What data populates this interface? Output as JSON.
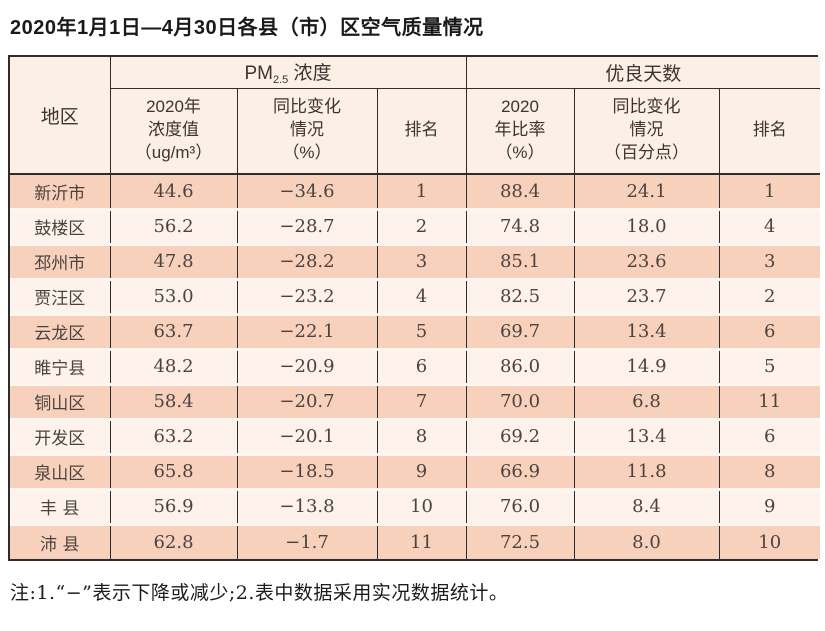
{
  "page": {
    "title": "2020年1月1日—4月30日各县（市）区空气质量情况",
    "note": "注:1.“−”表示下降或减少;2.表中数据采用实况数据统计。"
  },
  "theme": {
    "row-odd": "#f8d1bd",
    "row-even": "#fdf3ec",
    "header-bg": "#fcefe6",
    "border-dark": "#2d2d2d"
  },
  "table": {
    "headers": {
      "region": "地区",
      "pm25_group": {
        "prefix": "PM",
        "sub": "2.5",
        "suffix": " 浓度"
      },
      "good_days_group": "优良天数",
      "sub": {
        "pm25_value": "2020年\n浓度值\n（ug/m³）",
        "pm25_change": "同比变化\n情况\n（%）",
        "pm25_rank": "排名",
        "ratio_value": "2020\n年比率\n（%）",
        "ratio_change": "同比变化\n情况\n（百分点）",
        "ratio_rank": "排名"
      }
    },
    "rows": [
      {
        "region": "新沂市",
        "pm25_value": "44.6",
        "pm25_change": "−34.6",
        "pm25_rank": "1",
        "ratio_value": "88.4",
        "ratio_change": "24.1",
        "ratio_rank": "1"
      },
      {
        "region": "鼓楼区",
        "pm25_value": "56.2",
        "pm25_change": "−28.7",
        "pm25_rank": "2",
        "ratio_value": "74.8",
        "ratio_change": "18.0",
        "ratio_rank": "4"
      },
      {
        "region": "邳州市",
        "pm25_value": "47.8",
        "pm25_change": "−28.2",
        "pm25_rank": "3",
        "ratio_value": "85.1",
        "ratio_change": "23.6",
        "ratio_rank": "3"
      },
      {
        "region": "贾汪区",
        "pm25_value": "53.0",
        "pm25_change": "−23.2",
        "pm25_rank": "4",
        "ratio_value": "82.5",
        "ratio_change": "23.7",
        "ratio_rank": "2"
      },
      {
        "region": "云龙区",
        "pm25_value": "63.7",
        "pm25_change": "−22.1",
        "pm25_rank": "5",
        "ratio_value": "69.7",
        "ratio_change": "13.4",
        "ratio_rank": "6"
      },
      {
        "region": "睢宁县",
        "pm25_value": "48.2",
        "pm25_change": "−20.9",
        "pm25_rank": "6",
        "ratio_value": "86.0",
        "ratio_change": "14.9",
        "ratio_rank": "5"
      },
      {
        "region": "铜山区",
        "pm25_value": "58.4",
        "pm25_change": "−20.7",
        "pm25_rank": "7",
        "ratio_value": "70.0",
        "ratio_change": "6.8",
        "ratio_rank": "11"
      },
      {
        "region": "开发区",
        "pm25_value": "63.2",
        "pm25_change": "−20.1",
        "pm25_rank": "8",
        "ratio_value": "69.2",
        "ratio_change": "13.4",
        "ratio_rank": "6"
      },
      {
        "region": "泉山区",
        "pm25_value": "65.8",
        "pm25_change": "−18.5",
        "pm25_rank": "9",
        "ratio_value": "66.9",
        "ratio_change": "11.8",
        "ratio_rank": "8"
      },
      {
        "region": "丰 县",
        "pm25_value": "56.9",
        "pm25_change": "−13.8",
        "pm25_rank": "10",
        "ratio_value": "76.0",
        "ratio_change": "8.4",
        "ratio_rank": "9"
      },
      {
        "region": "沛 县",
        "pm25_value": "62.8",
        "pm25_change": "−1.7",
        "pm25_rank": "11",
        "ratio_value": "72.5",
        "ratio_change": "8.0",
        "ratio_rank": "10"
      }
    ]
  }
}
